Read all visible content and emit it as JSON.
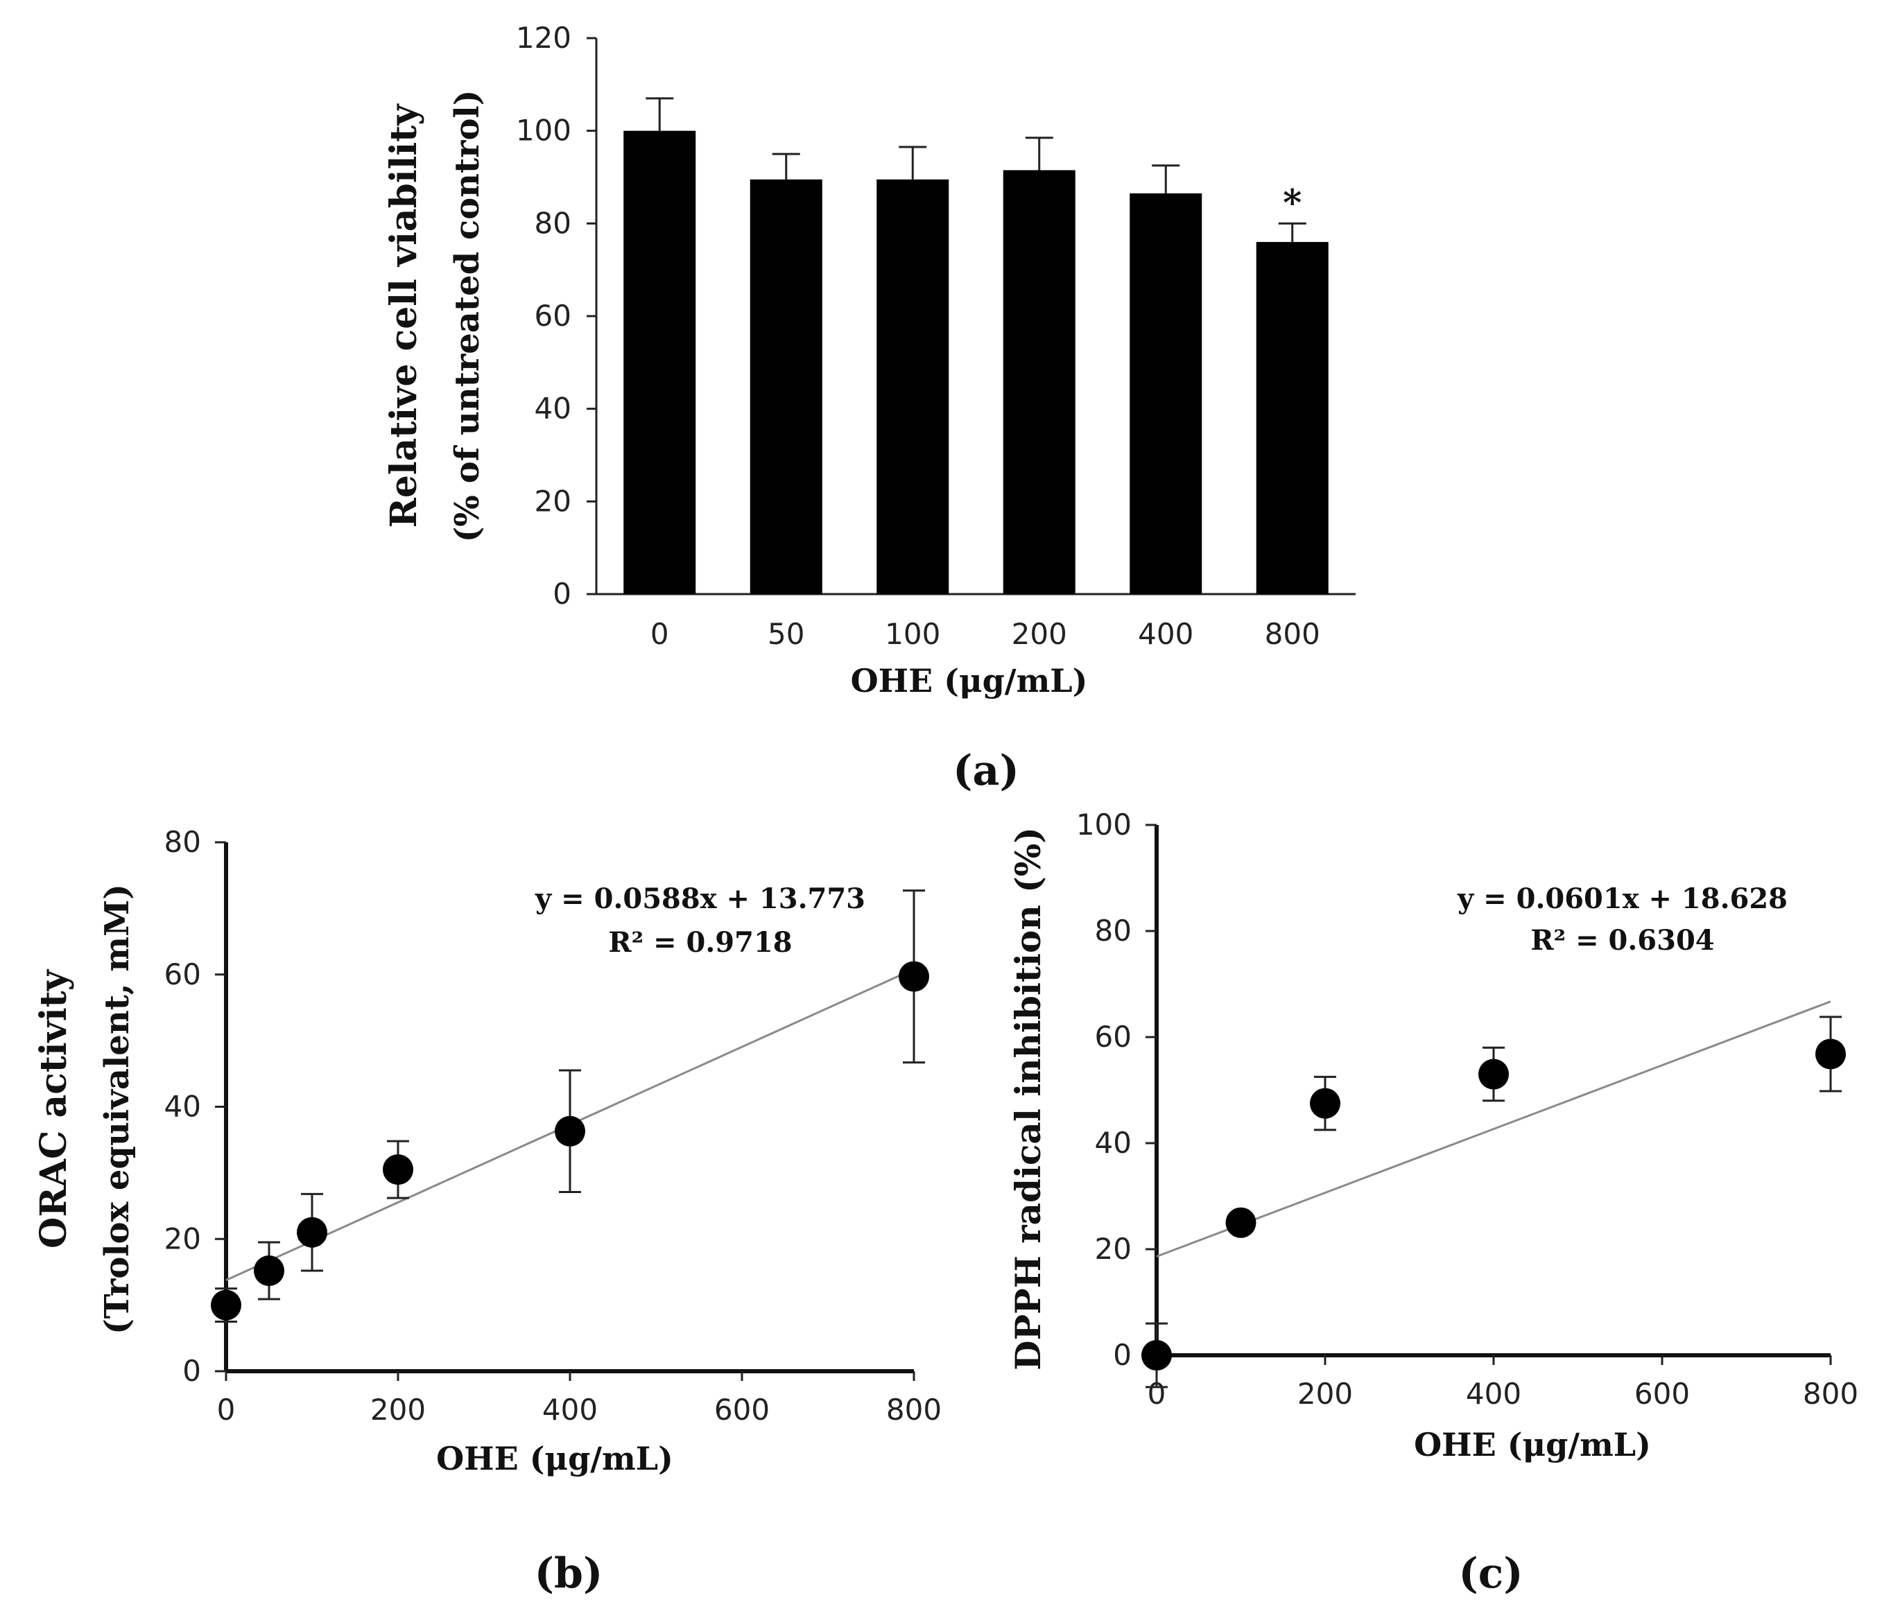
{
  "chart_data": [
    {
      "panel": "(a)",
      "type": "bar",
      "categories": [
        "0",
        "50",
        "100",
        "200",
        "400",
        "800"
      ],
      "values": [
        100,
        89.5,
        89.5,
        91.5,
        86.5,
        76
      ],
      "errors": [
        7,
        5.5,
        7,
        7,
        6,
        4
      ],
      "annotations": [
        "",
        "",
        "",
        "",
        "",
        "*"
      ],
      "xlabel": "OHE (μg/mL)",
      "ylabel_line1": "Relative cell viability",
      "ylabel_line2": "(% of untreated control)",
      "ylim": [
        0,
        120
      ],
      "yticks": [
        "0",
        "20",
        "40",
        "60",
        "80",
        "100",
        "120"
      ],
      "bar_color": "#000000"
    },
    {
      "panel": "(b)",
      "type": "scatter",
      "x": [
        0,
        50,
        100,
        200,
        400,
        800
      ],
      "y": [
        10,
        15.2,
        21,
        30.5,
        36.3,
        59.7
      ],
      "errors": [
        2.5,
        4.3,
        5.8,
        4.3,
        9.2,
        13
      ],
      "xlabel": "OHE (μg/mL)",
      "ylabel_line1": "ORAC activity",
      "ylabel_line2": "(Trolox equivalent, mM)",
      "xlim": [
        0,
        800
      ],
      "ylim": [
        0,
        80
      ],
      "xticks": [
        "0",
        "200",
        "400",
        "600",
        "800"
      ],
      "yticks": [
        "0",
        "20",
        "40",
        "60",
        "80"
      ],
      "trendline": {
        "slope": 0.0588,
        "intercept": 13.773
      },
      "equation": "y = 0.0588x + 13.773",
      "r2": "R² = 0.9718"
    },
    {
      "panel": "(c)",
      "type": "scatter",
      "x": [
        0,
        100,
        200,
        400,
        800
      ],
      "y": [
        0,
        25,
        47.5,
        53,
        56.8
      ],
      "errors": [
        6,
        1.5,
        5,
        5,
        7
      ],
      "xlabel": "OHE (μg/mL)",
      "ylabel": "DPPH radical inhibition (%)",
      "xlim": [
        0,
        800
      ],
      "ylim": [
        0,
        100
      ],
      "xticks": [
        "0",
        "200",
        "400",
        "600",
        "800"
      ],
      "yticks": [
        "0",
        "20",
        "40",
        "60",
        "80",
        "100"
      ],
      "trendline": {
        "slope": 0.0601,
        "intercept": 18.628
      },
      "equation": "y = 0.0601x + 18.628",
      "r2": "R² = 0.6304"
    }
  ]
}
